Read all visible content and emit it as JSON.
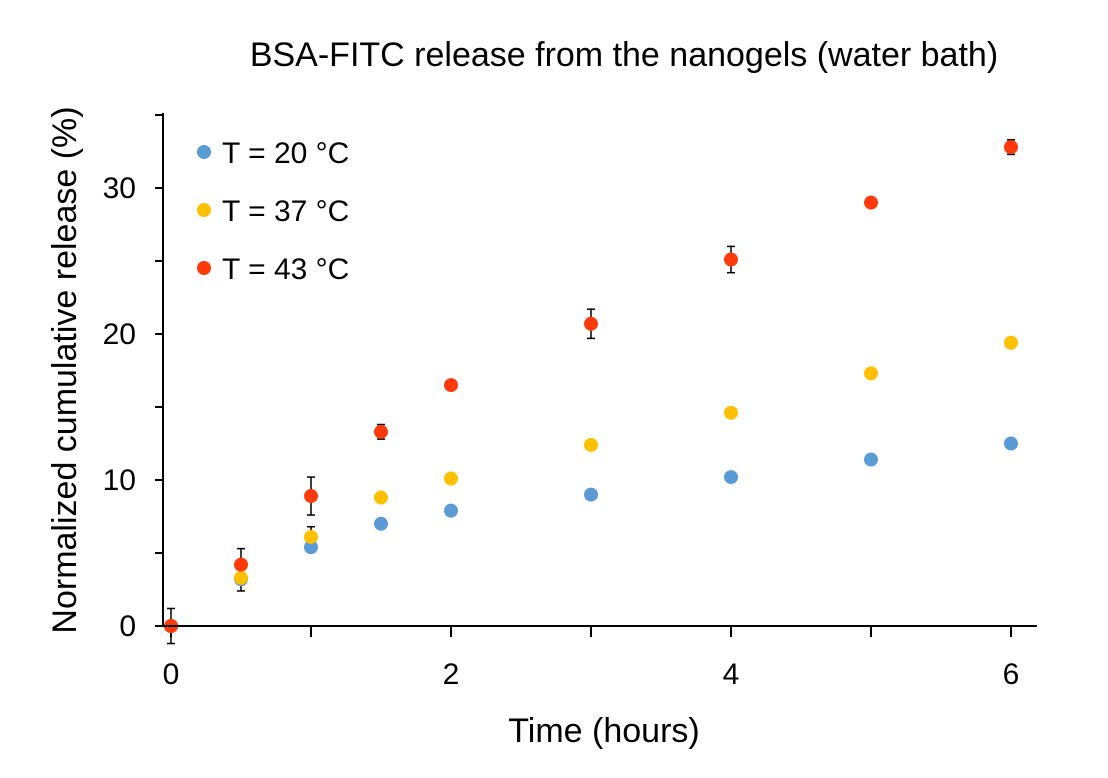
{
  "chart_data": {
    "type": "scatter",
    "title": "BSA-FITC release from the nanogels (water bath)",
    "xlabel": "Time (hours)",
    "ylabel": "Normalized cumulative release (%)",
    "xlim": [
      0,
      6.2
    ],
    "ylim": [
      0,
      35
    ],
    "xticks": [
      0,
      1,
      2,
      3,
      4,
      5,
      6
    ],
    "xtick_labels": [
      "0",
      "",
      "2",
      "",
      "4",
      "",
      "6"
    ],
    "yticks": [
      0,
      5,
      10,
      15,
      20,
      25,
      30,
      35
    ],
    "ytick_labels": [
      "0",
      "",
      "10",
      "",
      "20",
      "",
      "30",
      ""
    ],
    "legend_position": "top-left",
    "x": [
      0,
      0.5,
      1,
      1.5,
      2,
      3,
      4,
      5,
      6
    ],
    "series": [
      {
        "name": "T = 20 °C",
        "color": "#5B9BD5",
        "values": [
          0,
          3.2,
          5.4,
          7.0,
          7.9,
          9.0,
          10.2,
          11.4,
          12.5
        ],
        "errors": [
          0,
          0,
          0,
          0,
          0,
          0.3,
          0,
          0,
          0
        ]
      },
      {
        "name": "T = 37 °C",
        "color": "#FFC000",
        "values": [
          0,
          3.3,
          6.1,
          8.8,
          10.1,
          12.4,
          14.6,
          17.3,
          19.4
        ],
        "errors": [
          0,
          0.9,
          0.7,
          0,
          0,
          0,
          0,
          0,
          0
        ]
      },
      {
        "name": "T = 43 °C",
        "color": "#FF3A0A",
        "values": [
          0,
          4.2,
          8.9,
          13.3,
          16.5,
          20.7,
          25.1,
          29.0,
          32.8
        ],
        "errors": [
          1.2,
          1.1,
          1.3,
          0.5,
          0,
          1.0,
          0.9,
          0,
          0.5
        ]
      }
    ]
  }
}
